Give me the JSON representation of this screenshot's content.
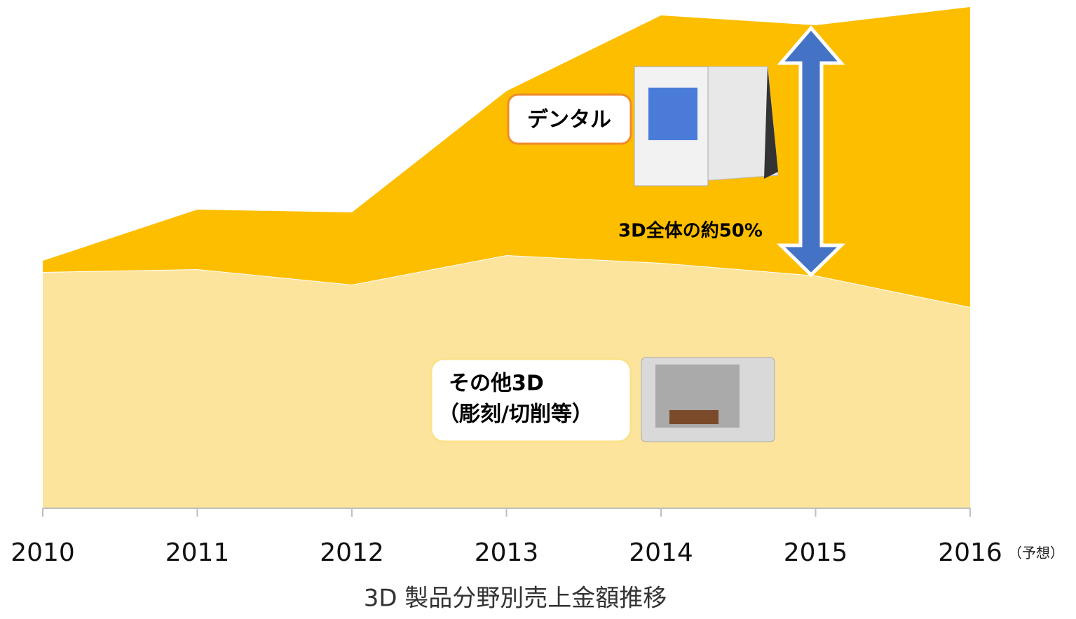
{
  "chart_data": {
    "type": "stacked-area",
    "title": "3D 製品分野別売上金額推移",
    "categories": [
      "2010",
      "2011",
      "2012",
      "2013",
      "2014",
      "2015",
      "2016"
    ],
    "x_note": "（予想）",
    "series": [
      {
        "name": "その他3D",
        "color": "#fde49c",
        "values": [
          337,
          341,
          319,
          361,
          350,
          332,
          287
        ]
      },
      {
        "name": "デンタル",
        "color": "#fdbe00",
        "values": [
          16,
          85,
          103,
          234,
          353,
          357,
          428
        ]
      }
    ],
    "annotations": {
      "other_detail": "（彫刻/切削等）",
      "share": "3D全体の約50%"
    }
  }
}
